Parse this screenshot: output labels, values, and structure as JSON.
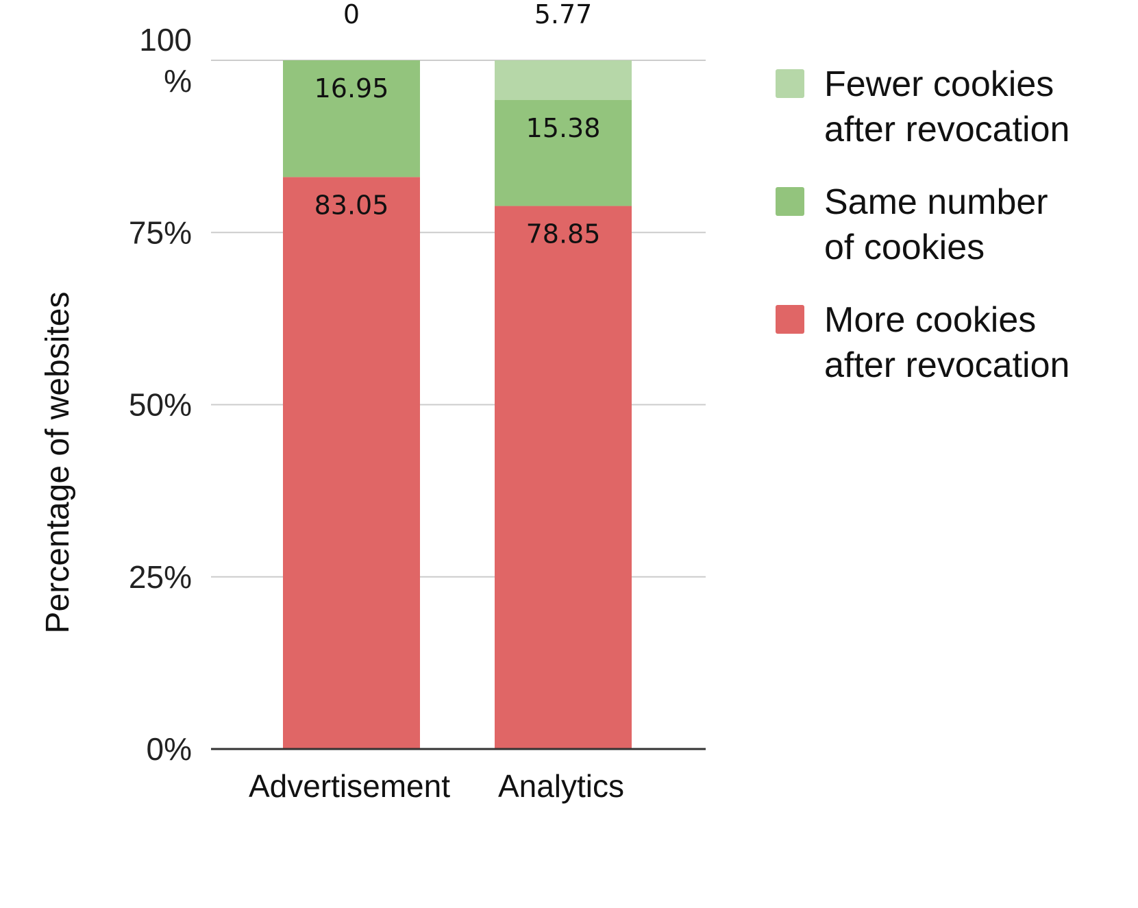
{
  "chart_data": {
    "type": "bar",
    "stacked": true,
    "orientation": "vertical",
    "categories": [
      "Advertisement",
      "Analytics"
    ],
    "series": [
      {
        "name": "More cookies after revocation",
        "values": [
          83.05,
          78.85
        ],
        "color": "#e06666"
      },
      {
        "name": "Same number of cookies",
        "values": [
          16.95,
          15.38
        ],
        "color": "#93c47d"
      },
      {
        "name": "Fewer cookies after revocation",
        "values": [
          0,
          5.77
        ],
        "color": "#b6d7a8"
      }
    ],
    "legend_order": [
      {
        "name_lines": [
          "Fewer cookies",
          "after revocation"
        ],
        "color": "#b6d7a8"
      },
      {
        "name_lines": [
          "Same number",
          "of cookies"
        ],
        "color": "#93c47d"
      },
      {
        "name_lines": [
          "More cookies",
          "after revocation"
        ],
        "color": "#e06666"
      }
    ],
    "ylabel": "Percentage of websites",
    "xlabel": "",
    "ylim": [
      0,
      100
    ],
    "yticks": [
      {
        "value": 0,
        "lines": [
          "0%"
        ]
      },
      {
        "value": 25,
        "lines": [
          "25%"
        ]
      },
      {
        "value": 50,
        "lines": [
          "50%"
        ]
      },
      {
        "value": 75,
        "lines": [
          "75%"
        ]
      },
      {
        "value": 100,
        "lines": [
          "100",
          "%"
        ]
      }
    ],
    "data_labels": [
      [
        "83.05",
        "16.95",
        "0"
      ],
      [
        "78.85",
        "15.38",
        "5.77"
      ]
    ],
    "grid": true,
    "legend_position": "right",
    "gridline_color": "#cccccc",
    "baseline_color": "#333333"
  }
}
